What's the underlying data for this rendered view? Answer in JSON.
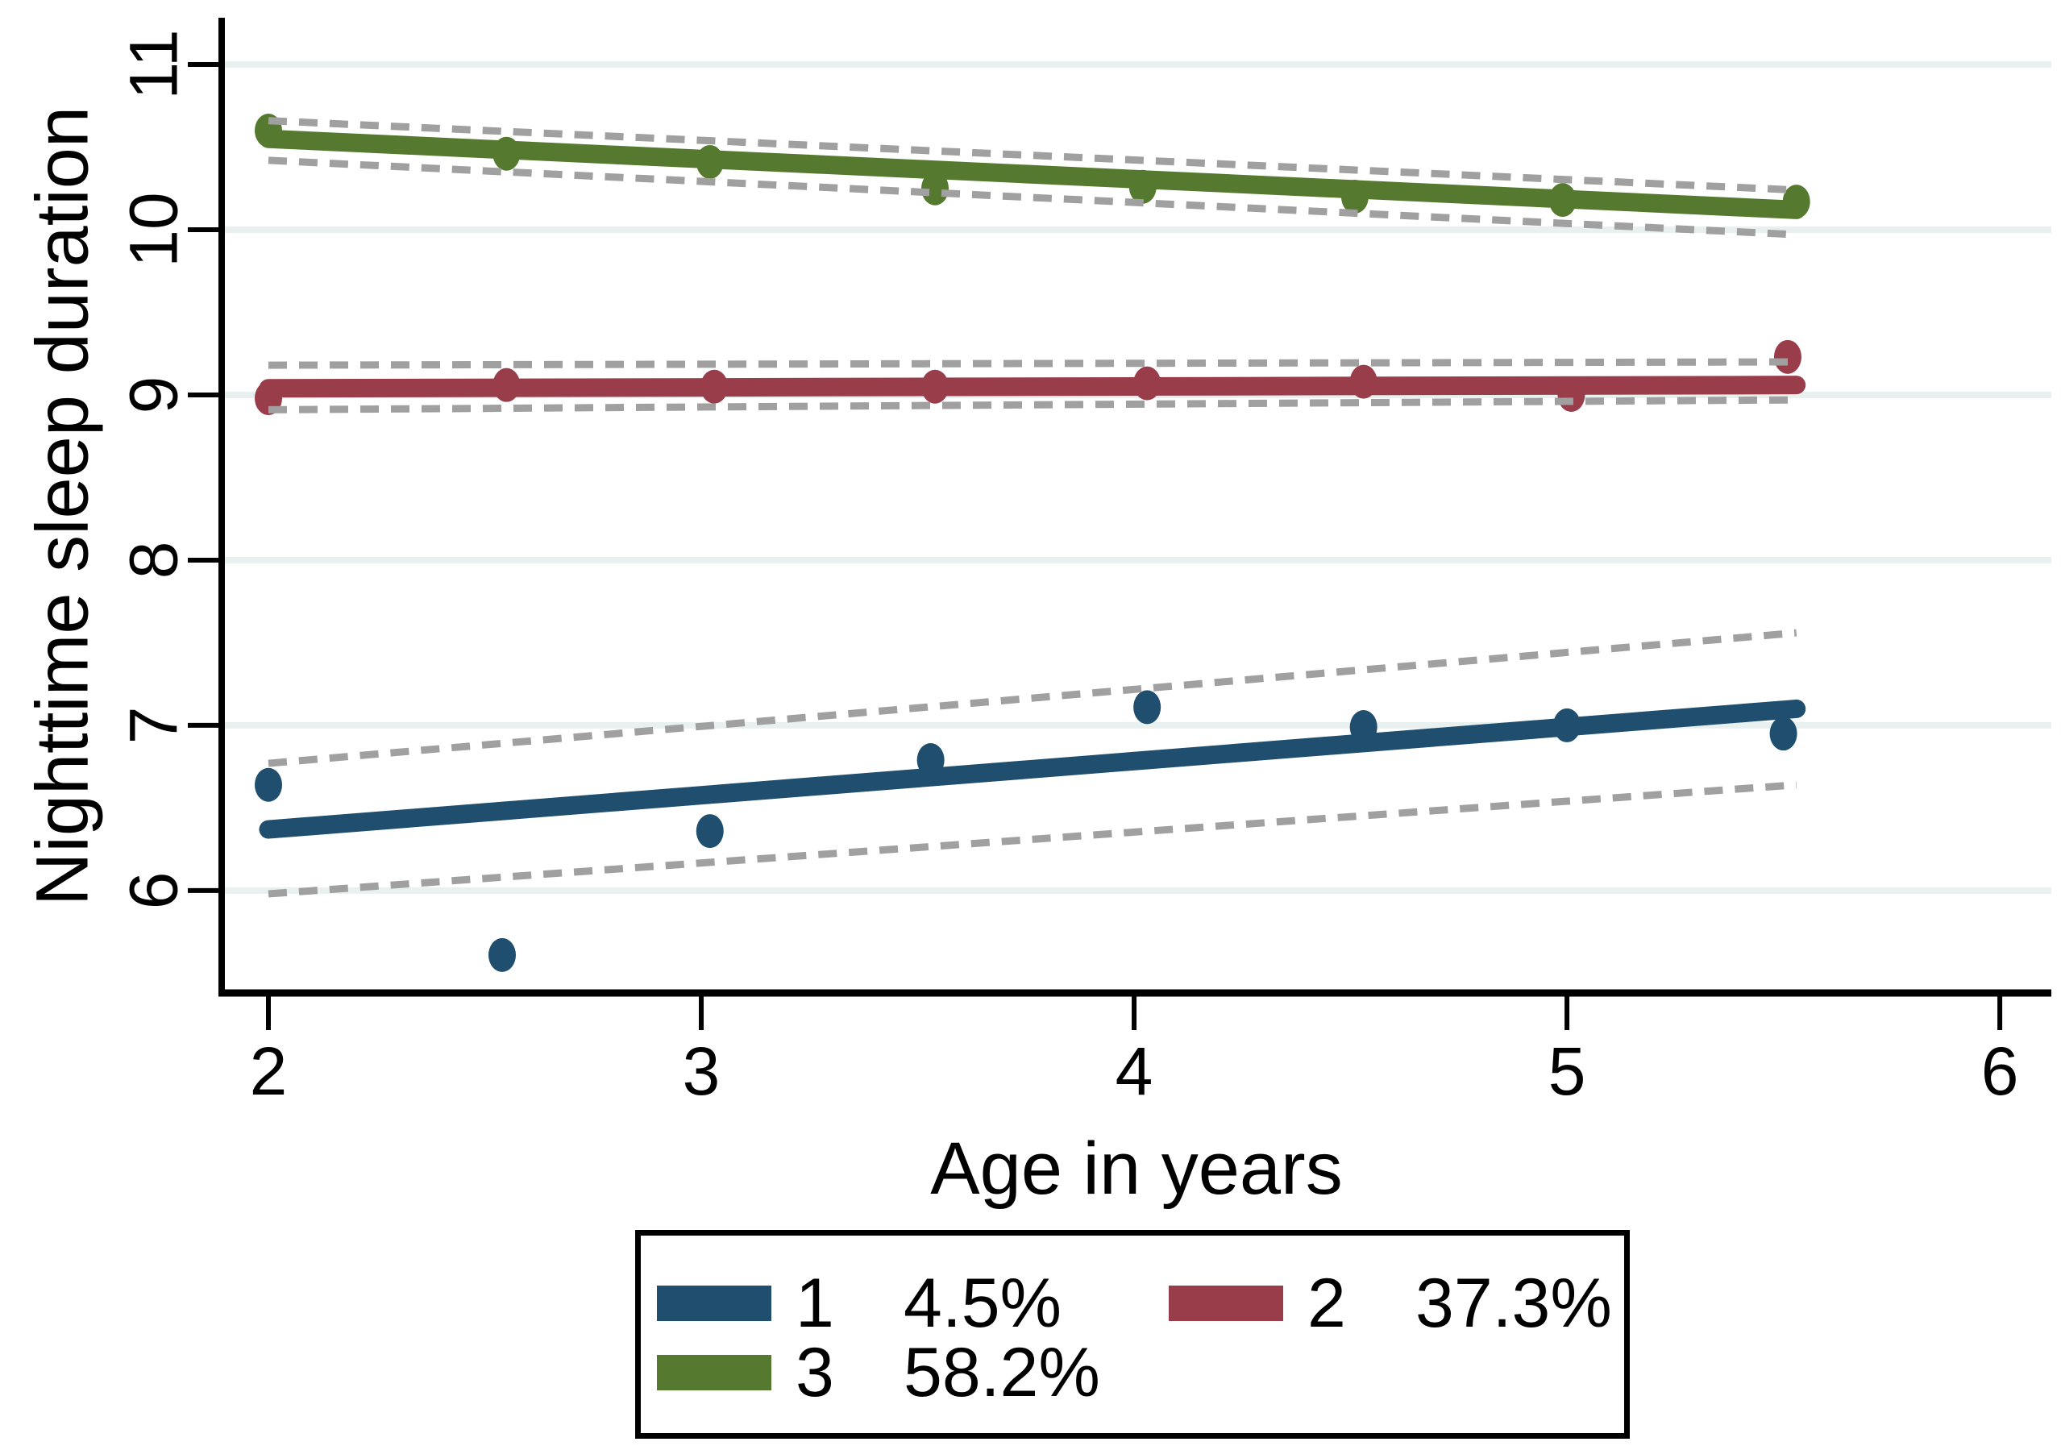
{
  "chart_data": {
    "type": "scatter",
    "title": "",
    "xlabel": "Age in years",
    "ylabel": "Nighttime sleep duration",
    "x_ticks": [
      2,
      3,
      4,
      5,
      6
    ],
    "y_ticks": [
      6,
      7,
      8,
      9,
      10,
      11
    ],
    "xlim": [
      1.892,
      6.119
    ],
    "ylim": [
      5.38,
      11.283
    ],
    "grid": "horizontal",
    "legend_position": "bottom",
    "style": {
      "grid_color": "#e8f0f0",
      "ci_color": "#a0a0a0",
      "axis_color": "#000000",
      "background": "#ffffff"
    },
    "series": [
      {
        "label": "1",
        "share": "4.5%",
        "color": "#1f4e6e",
        "points": {
          "x": [
            2.0,
            2.54,
            3.02,
            3.53,
            4.03,
            4.53,
            5.0,
            5.5
          ],
          "y": [
            6.64,
            5.61,
            6.36,
            6.79,
            7.11,
            6.99,
            7.0,
            6.95
          ]
        },
        "fit_line": {
          "x": [
            2.0,
            5.53
          ],
          "y": [
            6.37,
            7.1
          ]
        },
        "ci_upper": {
          "x": [
            2.0,
            5.53
          ],
          "y": [
            6.77,
            7.56
          ]
        },
        "ci_lower": {
          "x": [
            2.0,
            5.53
          ],
          "y": [
            5.98,
            6.64
          ]
        }
      },
      {
        "label": "2",
        "share": "37.3%",
        "color": "#993d4b",
        "points": {
          "x": [
            2.0,
            2.55,
            3.03,
            3.54,
            4.03,
            4.53,
            5.01,
            5.51
          ],
          "y": [
            8.98,
            9.06,
            9.05,
            9.05,
            9.07,
            9.08,
            9.0,
            9.23
          ]
        },
        "fit_line": {
          "x": [
            2.0,
            5.53
          ],
          "y": [
            9.04,
            9.06
          ]
        },
        "ci_upper": {
          "x": [
            2.0,
            5.53
          ],
          "y": [
            9.18,
            9.2
          ]
        },
        "ci_lower": {
          "x": [
            2.0,
            5.53
          ],
          "y": [
            8.91,
            8.97
          ]
        }
      },
      {
        "label": "3",
        "share": "58.2%",
        "color": "#55792e",
        "points": {
          "x": [
            2.0,
            2.55,
            3.02,
            3.54,
            4.02,
            4.51,
            4.99,
            5.53
          ],
          "y": [
            10.6,
            10.46,
            10.41,
            10.25,
            10.26,
            10.2,
            10.18,
            10.17
          ]
        },
        "fit_line": {
          "x": [
            2.0,
            5.53
          ],
          "y": [
            10.55,
            10.12
          ]
        },
        "ci_upper": {
          "x": [
            2.0,
            5.53
          ],
          "y": [
            10.66,
            10.24
          ]
        },
        "ci_lower": {
          "x": [
            2.0,
            5.53
          ],
          "y": [
            10.42,
            9.97
          ]
        }
      }
    ]
  }
}
